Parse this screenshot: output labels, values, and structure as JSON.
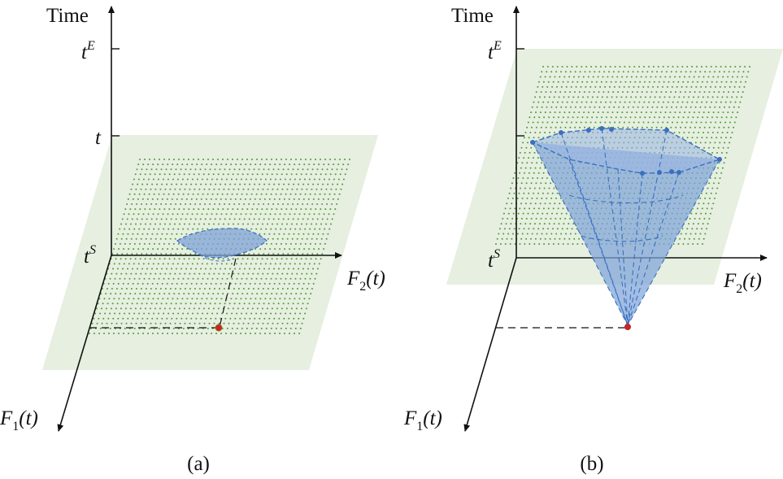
{
  "panels": [
    {
      "id": "a",
      "caption": "(a)",
      "axis_labels": {
        "time": "Time",
        "t_end": "t",
        "t_end_sup": "E",
        "t_mid": "t",
        "t_start": "t",
        "t_start_sup": "S",
        "f2_base": "F",
        "f2_sub": "2",
        "f2_arg": "(t)",
        "f1_base": "F",
        "f1_sub": "1",
        "f1_arg": "(t)"
      },
      "shape": "ellipse"
    },
    {
      "id": "b",
      "caption": "(b)",
      "axis_labels": {
        "time": "Time",
        "t_end": "t",
        "t_end_sup": "E",
        "t_start": "t",
        "t_start_sup": "S",
        "f2_base": "F",
        "f2_sub": "2",
        "f2_arg": "(t)",
        "f1_base": "F",
        "f1_sub": "1",
        "f1_arg": "(t)"
      },
      "shape": "cone"
    }
  ],
  "colors": {
    "plane": "#e6efe0",
    "grid_dot": "#4f9a3a",
    "region_fill": "#7fa3d8",
    "region_edge": "#3a6fc0",
    "point": "#c0282a",
    "axis": "#111111"
  }
}
